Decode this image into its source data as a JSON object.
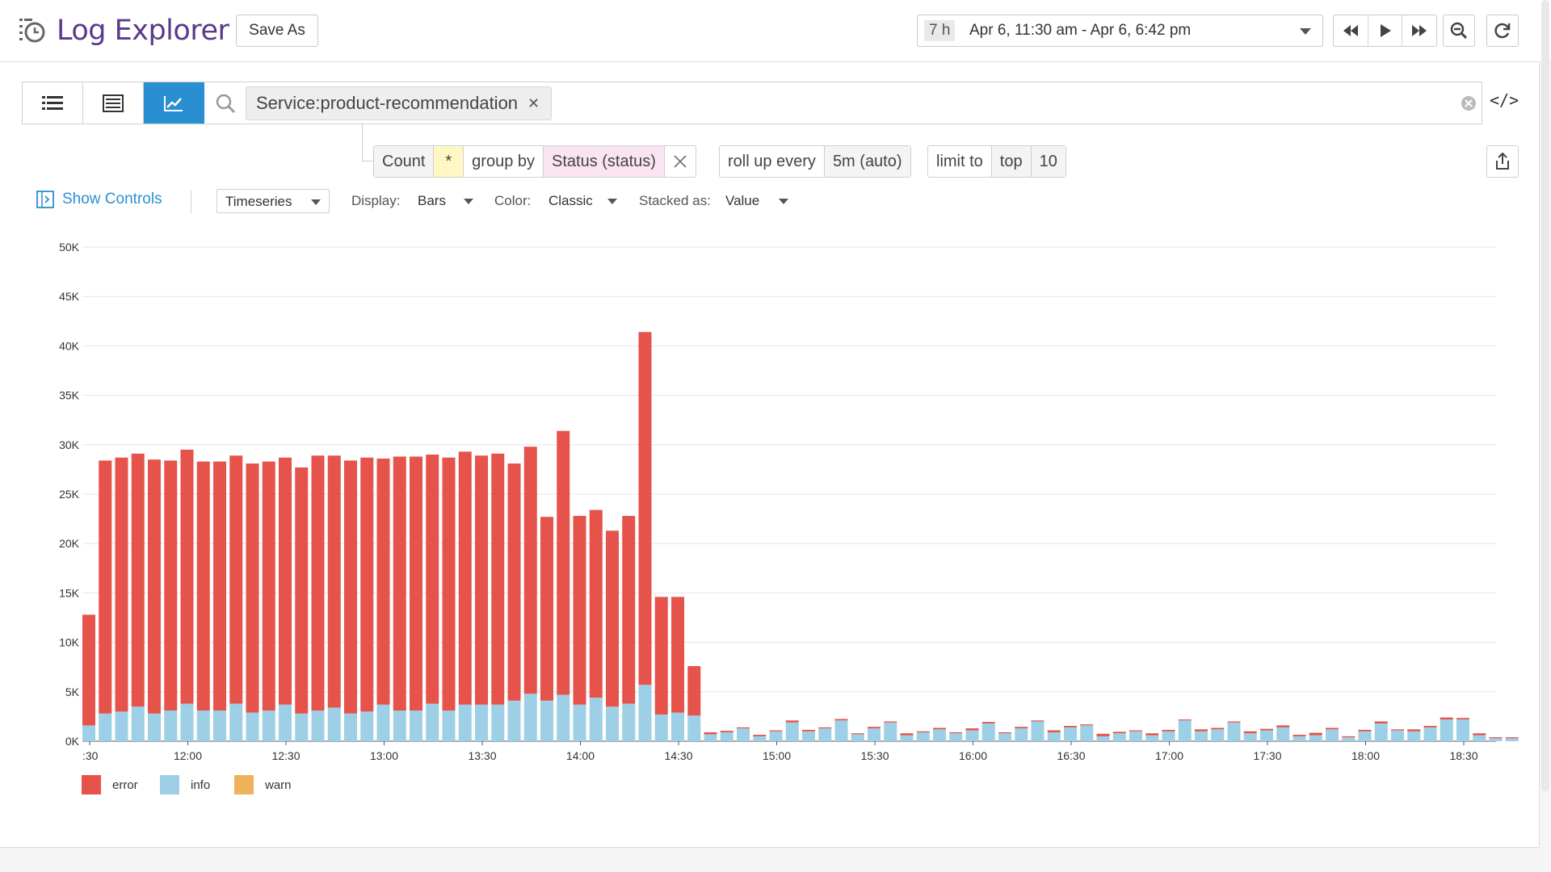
{
  "header": {
    "title": "Log Explorer",
    "save_as": "Save As",
    "time_duration": "7 h",
    "time_range": "Apr 6, 11:30 am - Apr 6, 6:42 pm"
  },
  "search": {
    "views": [
      "list-view",
      "table-view",
      "analytics-view"
    ],
    "active_view": "analytics-view",
    "tag": "Service:product-recommendation"
  },
  "query": {
    "measure": "Count",
    "measure_value": "*",
    "group_by_label": "group by",
    "group_by_value": "Status (status)",
    "rollup_label": "roll up every",
    "rollup_value": "5m (auto)",
    "limit_label": "limit to",
    "limit_dir": "top",
    "limit_value": "10"
  },
  "controls": {
    "show_controls": "Show Controls",
    "viz_type": "Timeseries",
    "display_label": "Display:",
    "display_value": "Bars",
    "color_label": "Color:",
    "color_value": "Classic",
    "stacked_label": "Stacked as:",
    "stacked_value": "Value"
  },
  "colors": {
    "error": "#e5534b",
    "info": "#9dcfe6",
    "warn": "#f0b15b",
    "accent": "#2a8fd0",
    "title": "#5b3a8c"
  },
  "chart_data": {
    "type": "bar",
    "stacked": true,
    "ylim": [
      0,
      50000
    ],
    "y_ticks": [
      "0K",
      "5K",
      "10K",
      "15K",
      "20K",
      "25K",
      "30K",
      "35K",
      "40K",
      "45K",
      "50K"
    ],
    "x_tick_labels": [
      ":30",
      "12:00",
      "12:30",
      "13:00",
      "13:30",
      "14:00",
      "14:30",
      "15:00",
      "15:30",
      "16:00",
      "16:30",
      "17:00",
      "17:30",
      "18:00",
      "18:30"
    ],
    "interval_minutes": 5,
    "grid": true,
    "legend": "bottom-left",
    "series": [
      {
        "name": "error",
        "values": [
          11200,
          25600,
          25700,
          25600,
          25700,
          25300,
          25700,
          25200,
          25200,
          25100,
          25200,
          25200,
          25000,
          24900,
          25800,
          25500,
          25600,
          25700,
          24900,
          25700,
          25700,
          25200,
          25600,
          25600,
          25200,
          25400,
          24000,
          25000,
          18600,
          26700,
          19100,
          19000,
          17800,
          19000,
          35700,
          11900,
          11700,
          5000,
          200,
          150,
          100,
          150,
          100,
          200,
          150,
          100,
          150,
          100,
          150,
          100,
          200,
          100,
          150,
          100,
          200,
          150,
          100,
          150,
          100,
          200,
          150,
          100,
          250,
          150,
          100,
          200,
          150,
          100,
          200,
          150,
          100,
          200,
          150,
          200,
          150,
          250,
          150,
          100,
          150,
          200,
          100,
          200,
          150,
          200,
          150,
          200,
          100,
          100
        ],
        "color": "#e5534b"
      },
      {
        "name": "info",
        "values": [
          1600,
          2800,
          3000,
          3500,
          2800,
          3100,
          3800,
          3100,
          3100,
          3800,
          2900,
          3100,
          3700,
          2800,
          3100,
          3400,
          2800,
          3000,
          3700,
          3100,
          3100,
          3800,
          3100,
          3700,
          3700,
          3700,
          4100,
          4800,
          4100,
          4700,
          3700,
          4400,
          3500,
          3800,
          5700,
          2700,
          2900,
          2600,
          700,
          900,
          1300,
          500,
          1000,
          1900,
          1000,
          1300,
          2100,
          700,
          1300,
          1900,
          600,
          900,
          1200,
          800,
          1100,
          1800,
          800,
          1300,
          2000,
          900,
          1400,
          1600,
          500,
          800,
          1000,
          600,
          1000,
          2100,
          1000,
          1200,
          1900,
          800,
          1100,
          1400,
          500,
          600,
          1200,
          400,
          1000,
          1800,
          1100,
          1000,
          1400,
          2200,
          2200,
          600,
          300,
          300
        ],
        "color": "#9dcfe6"
      },
      {
        "name": "warn",
        "values": [],
        "color": "#f0b15b"
      }
    ]
  }
}
